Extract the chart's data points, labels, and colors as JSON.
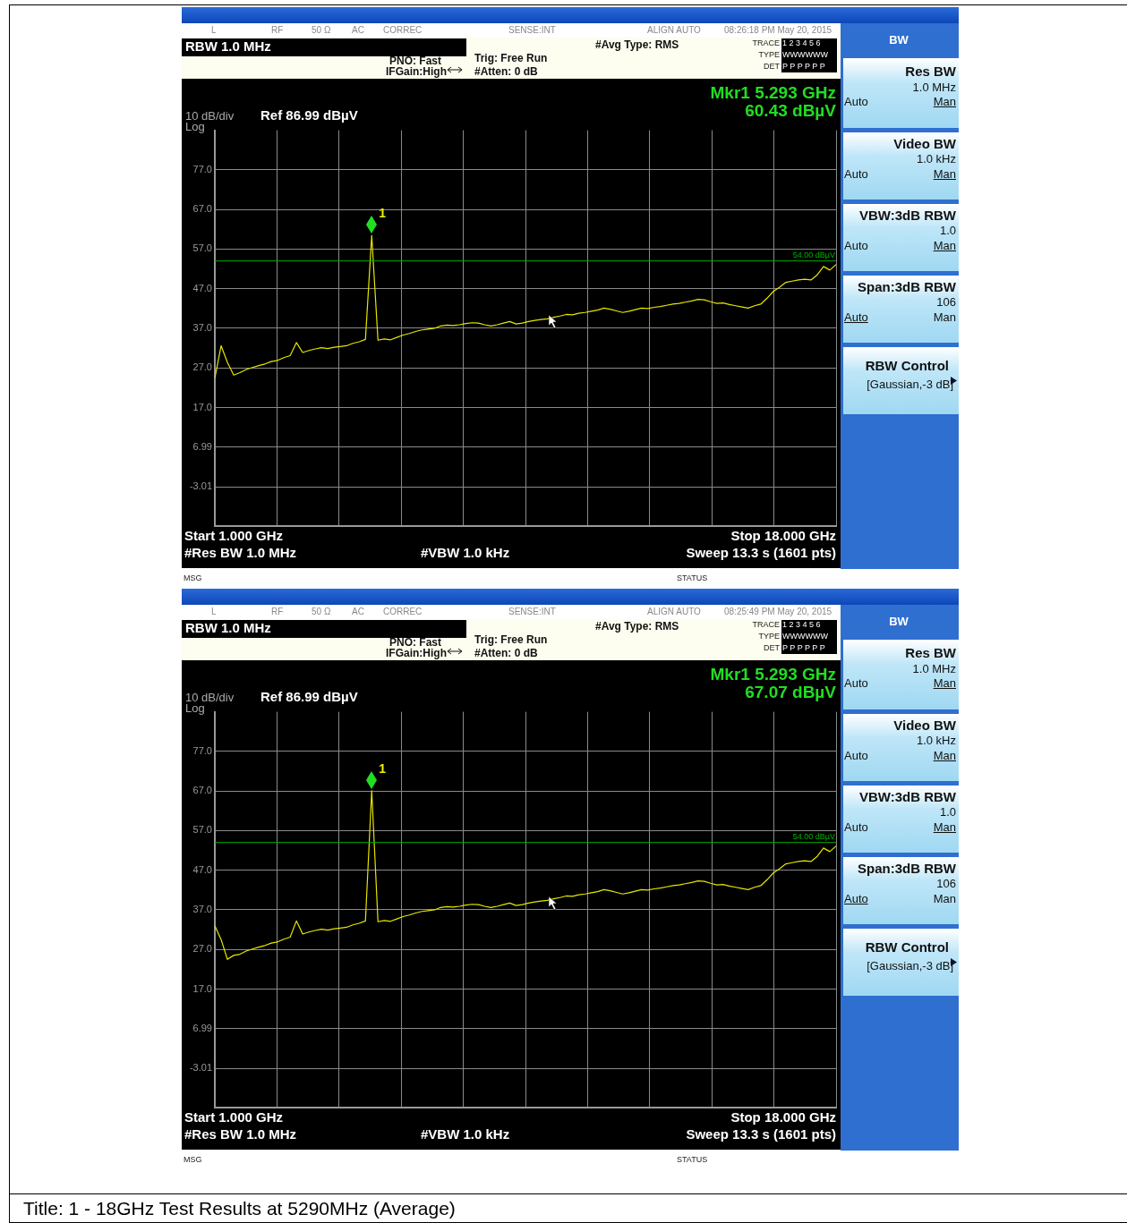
{
  "chart_data": [
    {
      "type": "line",
      "ylim": [
        -13.01,
        86.99
      ],
      "categories": [
        null,
        null,
        null,
        null,
        null,
        null,
        null,
        null,
        null,
        null,
        null,
        null,
        null,
        null,
        null,
        null,
        null,
        null,
        null,
        null,
        null,
        null,
        null,
        null,
        null,
        null,
        null,
        null,
        null,
        null,
        null,
        null,
        null,
        null,
        null,
        null,
        null,
        null,
        null,
        null,
        null,
        null,
        null,
        null,
        null,
        null,
        null,
        null,
        null,
        null,
        null,
        null,
        null,
        null,
        null,
        null,
        null,
        null,
        null,
        null,
        null,
        null,
        null,
        null,
        null,
        null,
        null,
        null,
        null,
        null,
        null,
        null,
        null,
        null,
        null,
        null,
        null,
        null,
        null,
        null,
        null,
        null,
        null,
        null,
        null,
        null,
        null,
        null,
        null,
        null,
        null,
        null,
        null,
        null,
        null,
        null,
        null,
        null,
        null,
        null
      ],
      "yticks": [
        {
          "value": 77,
          "label": "77.0"
        },
        {
          "value": 67,
          "label": "67.0"
        },
        {
          "value": 57,
          "label": "57.0"
        },
        {
          "value": 47,
          "label": "47.0"
        },
        {
          "value": 37,
          "label": "37.0"
        },
        {
          "value": 27,
          "label": "27.0"
        },
        {
          "value": 17,
          "label": "17.0"
        },
        {
          "value": 6.99,
          "label": "6.99"
        },
        {
          "value": -3.01,
          "label": "-3.01"
        }
      ],
      "tick_labels": "y",
      "grid": true,
      "marker": "none",
      "line_style": "solid",
      "series": [
        {
          "color": "#e6e600",
          "values": [
            24.4,
            32.6,
            28.4,
            25.2,
            25.8,
            26.6,
            27.1,
            27.6,
            28.0,
            28.6,
            28.9,
            29.6,
            30.1,
            33.4,
            30.9,
            31.4,
            31.8,
            32.1,
            31.9,
            32.2,
            32.4,
            32.6,
            33.2,
            33.6,
            34.2,
            60.43,
            34.0,
            34.3,
            34.1,
            34.7,
            35.3,
            35.7,
            36.2,
            36.6,
            36.8,
            37.0,
            37.6,
            37.8,
            37.7,
            37.9,
            38.2,
            38.4,
            38.3,
            37.9,
            37.6,
            37.9,
            38.3,
            38.7,
            38.1,
            38.3,
            38.7,
            39.0,
            39.2,
            39.4,
            39.8,
            40.1,
            40.5,
            40.4,
            40.8,
            41.0,
            41.3,
            41.6,
            42.1,
            41.8,
            41.4,
            41.0,
            41.3,
            41.7,
            42.1,
            42.0,
            42.3,
            42.5,
            42.8,
            43.1,
            43.3,
            43.6,
            43.9,
            44.3,
            44.2,
            43.7,
            43.3,
            43.4,
            43.0,
            42.7,
            42.4,
            42.1,
            42.7,
            43.1,
            44.6,
            46.3,
            47.4,
            48.6,
            48.9,
            49.2,
            49.4,
            49.2,
            50.5,
            52.6,
            51.7,
            53.1
          ]
        }
      ],
      "ref_lines": [
        {
          "axis": "y",
          "value": 54,
          "label": "54.00 dBµV",
          "color": "#00b000"
        }
      ],
      "annotations": [
        "L",
        "RF",
        "50 Ω",
        "AC",
        "CORREC",
        "SENSE:INT",
        "ALIGN AUTO",
        "08:26:18 PM May 20, 2015",
        "RBW 1.0 MHz",
        "PNO: Fast",
        "IFGain:High",
        "Trig: Free Run",
        "#Atten: 0 dB",
        "#Avg Type: RMS",
        "TRACE",
        "1 2 3 4 5 6",
        "TYPE",
        "WWWWWW",
        "DET",
        "P P P P P P",
        "Mkr1 5.293 GHz",
        "60.43 dBµV",
        "10 dB/div",
        "Log",
        "Ref 86.99 dBµV",
        "Start 1.000 GHz",
        "#Res BW 1.0 MHz",
        "#VBW 1.0 kHz",
        "Sweep  13.3 s (1601 pts)",
        "Stop 18.000 GHz",
        "MSG",
        "STATUS",
        "BW",
        "Res BW",
        "1.0 MHz",
        "Auto",
        "Man",
        "Video BW",
        "1.0 kHz",
        "Auto",
        "Man",
        "VBW:3dB RBW",
        "1.0",
        "Auto",
        "Man",
        "Span:3dB RBW",
        "106",
        "Auto",
        "Man",
        "RBW Control",
        "[Gaussian,-3 dB]",
        "1"
      ]
    },
    {
      "type": "line",
      "ylim": [
        -13.01,
        86.99
      ],
      "categories": [
        null,
        null,
        null,
        null,
        null,
        null,
        null,
        null,
        null,
        null,
        null,
        null,
        null,
        null,
        null,
        null,
        null,
        null,
        null,
        null,
        null,
        null,
        null,
        null,
        null,
        null,
        null,
        null,
        null,
        null,
        null,
        null,
        null,
        null,
        null,
        null,
        null,
        null,
        null,
        null,
        null,
        null,
        null,
        null,
        null,
        null,
        null,
        null,
        null,
        null,
        null,
        null,
        null,
        null,
        null,
        null,
        null,
        null,
        null,
        null,
        null,
        null,
        null,
        null,
        null,
        null,
        null,
        null,
        null,
        null,
        null,
        null,
        null,
        null,
        null,
        null,
        null,
        null,
        null,
        null,
        null,
        null,
        null,
        null,
        null,
        null,
        null,
        null,
        null,
        null,
        null,
        null,
        null,
        null,
        null,
        null,
        null,
        null,
        null,
        null
      ],
      "yticks": [
        {
          "value": 77,
          "label": "77.0"
        },
        {
          "value": 67,
          "label": "67.0"
        },
        {
          "value": 57,
          "label": "57.0"
        },
        {
          "value": 47,
          "label": "47.0"
        },
        {
          "value": 37,
          "label": "37.0"
        },
        {
          "value": 27,
          "label": "27.0"
        },
        {
          "value": 17,
          "label": "17.0"
        },
        {
          "value": 6.99,
          "label": "6.99"
        },
        {
          "value": -3.01,
          "label": "-3.01"
        }
      ],
      "tick_labels": "y",
      "grid": true,
      "marker": "none",
      "line_style": "solid",
      "series": [
        {
          "color": "#e6e600",
          "values": [
            33.0,
            29.5,
            24.5,
            25.5,
            25.8,
            26.6,
            27.1,
            27.6,
            28.0,
            28.6,
            28.9,
            29.6,
            30.1,
            34.2,
            30.9,
            31.4,
            31.8,
            32.1,
            31.9,
            32.2,
            32.4,
            32.6,
            33.2,
            33.6,
            34.2,
            67.07,
            34.0,
            34.3,
            34.1,
            34.7,
            35.3,
            35.7,
            36.2,
            36.6,
            36.8,
            37.0,
            37.6,
            37.8,
            37.7,
            37.9,
            38.2,
            38.4,
            38.3,
            37.9,
            37.6,
            37.9,
            38.3,
            38.7,
            38.1,
            38.3,
            38.7,
            39.0,
            39.2,
            39.4,
            39.8,
            40.1,
            40.5,
            40.4,
            40.8,
            41.0,
            41.3,
            41.6,
            42.1,
            41.8,
            41.4,
            41.0,
            41.3,
            41.7,
            42.1,
            42.0,
            42.3,
            42.5,
            42.8,
            43.1,
            43.3,
            43.6,
            43.9,
            44.3,
            44.2,
            43.7,
            43.3,
            43.4,
            43.0,
            42.7,
            42.4,
            42.1,
            42.7,
            43.1,
            44.6,
            46.3,
            47.4,
            48.6,
            48.9,
            49.2,
            49.4,
            49.2,
            50.5,
            52.6,
            51.7,
            53.1
          ]
        }
      ],
      "ref_lines": [
        {
          "axis": "y",
          "value": 54,
          "label": "54.00 dBµV",
          "color": "#00b000"
        }
      ],
      "annotations": [
        "L",
        "RF",
        "50 Ω",
        "AC",
        "CORREC",
        "SENSE:INT",
        "ALIGN AUTO",
        "08:25:49 PM May 20, 2015",
        "RBW 1.0 MHz",
        "PNO: Fast",
        "IFGain:High",
        "Trig: Free Run",
        "#Atten: 0 dB",
        "#Avg Type: RMS",
        "TRACE",
        "1 2 3 4 5 6",
        "TYPE",
        "WWWWWW",
        "DET",
        "P P P P P P",
        "Mkr1 5.293 GHz",
        "67.07 dBµV",
        "10 dB/div",
        "Log",
        "Ref 86.99 dBµV",
        "Start 1.000 GHz",
        "#Res BW 1.0 MHz",
        "#VBW 1.0 kHz",
        "Sweep  13.3 s (1601 pts)",
        "Stop 18.000 GHz",
        "MSG",
        "STATUS",
        "BW",
        "Res BW",
        "1.0 MHz",
        "Auto",
        "Man",
        "Video BW",
        "1.0 kHz",
        "Auto",
        "Man",
        "VBW:3dB RBW",
        "1.0",
        "Auto",
        "Man",
        "Span:3dB RBW",
        "106",
        "Auto",
        "Man",
        "RBW Control",
        "[Gaussian,-3 dB]",
        "1",
        "Title: 1 - 18GHz Test Results at 5290MHz (Average)"
      ]
    }
  ]
}
